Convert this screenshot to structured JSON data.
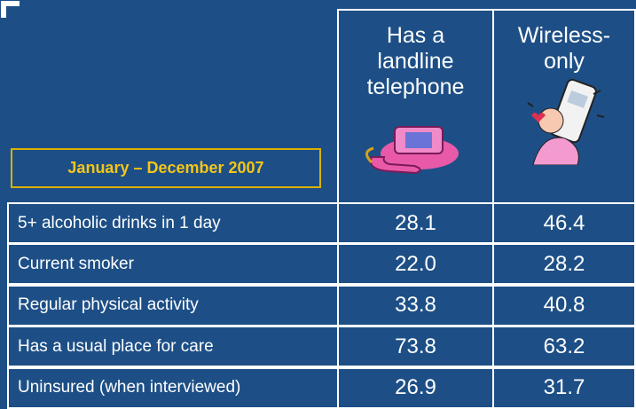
{
  "period": "January – December 2007",
  "columns": [
    {
      "lines": [
        "Has a",
        "landline",
        "telephone"
      ]
    },
    {
      "lines": [
        "Wireless-",
        "only"
      ]
    }
  ],
  "rows": [
    [
      "5+ alcoholic drinks in 1 day",
      "28.1",
      "46.4"
    ],
    [
      "Current smoker",
      "22.0",
      "28.2"
    ],
    [
      "Regular physical activity",
      "33.8",
      "40.8"
    ],
    [
      "Has a usual place for care",
      "73.8",
      "63.2"
    ],
    [
      "Uninsured (when interviewed)",
      "26.9",
      "31.7"
    ]
  ]
}
